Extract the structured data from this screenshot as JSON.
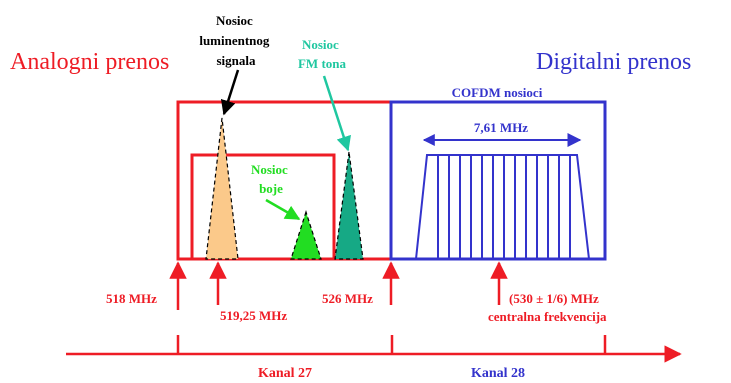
{
  "labels": {
    "analog_title": "Analogni prenos",
    "digital_title": "Digitalni prenos",
    "luma_carrier": [
      "Nosioc",
      "luminentnog",
      "signala"
    ],
    "fm_carrier": [
      "Nosioc",
      "FM tona"
    ],
    "color_carrier": [
      "Nosioc",
      "boje"
    ],
    "cofdm": "COFDM nosioci",
    "bandwidth": "7,61 MHz",
    "f518": "518 MHz",
    "f519": "519,25 MHz",
    "f526": "526 MHz",
    "center_freq": "(530 ± 1/6) MHz",
    "center_label": "centralna frekvencija",
    "channel_27": "Kanal 27",
    "channel_28": "Kanal 28"
  },
  "colors": {
    "analog": "#ee1c25",
    "digital": "#3333cc",
    "luma_fill": "#fbc98a",
    "fm_fill": "#16a985",
    "color_fill": "#22dd22",
    "fm_label": "#1fc7a0",
    "color_label": "#22dd22",
    "black": "#000000"
  }
}
